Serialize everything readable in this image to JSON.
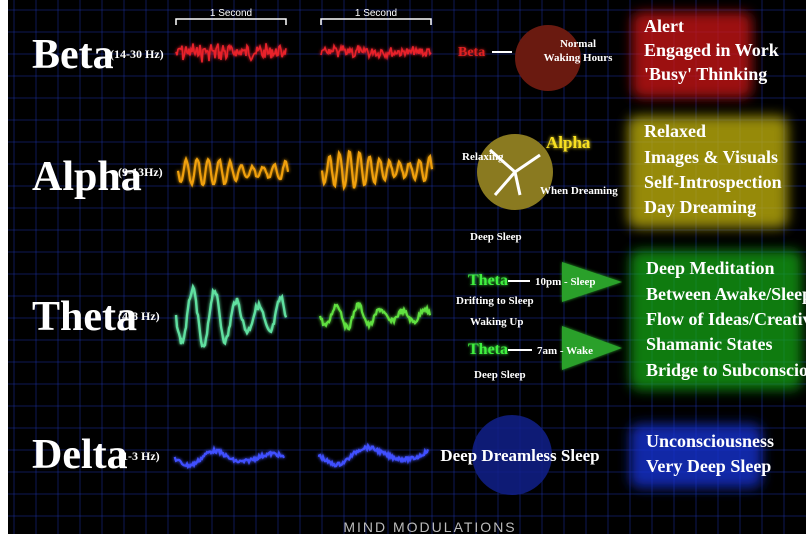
{
  "scale_labels": [
    "1 Second",
    "1 Second"
  ],
  "waves": [
    {
      "name": "Beta",
      "range": "(14-30 Hz)",
      "clock": {
        "label": "Beta",
        "notes": [
          "Normal",
          "Waking Hours"
        ]
      },
      "states": [
        "Alert",
        "Engaged in Work",
        "'Busy' Thinking"
      ]
    },
    {
      "name": "Alpha",
      "range": "(9-13Hz)",
      "clock": {
        "label": "Alpha",
        "notes": [
          "Relaxing",
          "When Dreaming"
        ]
      },
      "states": [
        "Relaxed",
        "Images & Visuals",
        "Self-Introspection",
        "Day Dreaming"
      ]
    },
    {
      "name": "Theta",
      "range": "(4-8 Hz)",
      "cycle": [
        "Deep Sleep",
        "Theta",
        "10pm - Sleep",
        "Drifting to Sleep",
        "Waking Up",
        "Theta",
        "7am - Wake",
        "Deep Sleep"
      ],
      "states": [
        "Deep Meditation",
        "Between Awake/Sleep",
        "Flow of Ideas/Creativity",
        "Shamanic States",
        "Bridge to Subconscious"
      ]
    },
    {
      "name": "Delta",
      "range": "(1-3 Hz)",
      "clock": {
        "label": "Deep Dreamless Sleep"
      },
      "states": [
        "Unconsciousness",
        "Very Deep Sleep"
      ]
    }
  ],
  "footer": "MIND MODULATIONS"
}
